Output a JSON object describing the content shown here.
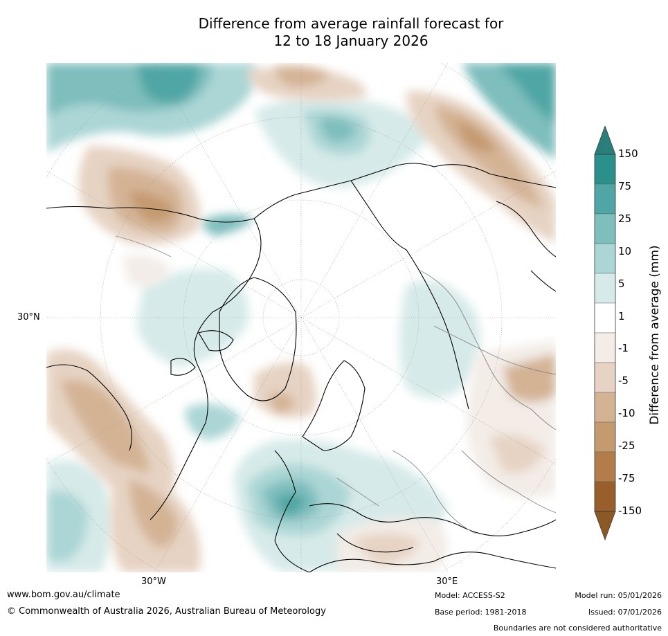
{
  "title_line1": "Difference from average rainfall forecast for",
  "title_line2": "12 to 18 January 2026",
  "map": {
    "projection": "north-polar-stereographic",
    "lat_label": "30°N",
    "lon_labels": [
      "30°W",
      "30°E"
    ],
    "land_color": "#ffffff",
    "coast_color": "#000000",
    "border_color": "#888888"
  },
  "colorbar": {
    "title": "Difference from average (mm)",
    "ticks": [
      "150",
      "75",
      "25",
      "10",
      "5",
      "1",
      "-1",
      "-5",
      "-10",
      "-25",
      "-75",
      "-150"
    ],
    "colors": [
      "#2b8f8a",
      "#4fa6a4",
      "#7ebebd",
      "#abd6d5",
      "#d6eae9",
      "#ffffff",
      "#f3ece7",
      "#e6d3c3",
      "#d4b395",
      "#c49a6f",
      "#b27d4a",
      "#985f2c"
    ],
    "top_arrow_color": "#2b7f7b",
    "bottom_arrow_color": "#8b5a24"
  },
  "footer": {
    "website": "www.bom.gov.au/climate",
    "copyright": "© Commonwealth of Australia 2026, Australian Bureau of Meteorology",
    "model": "Model: ACCESS-S2",
    "base_period": "Base period: 1981-2018",
    "model_run": "Model run: 05/01/2026",
    "issued": "Issued: 07/01/2026",
    "boundaries_note": "Boundaries are not considered authoritative"
  }
}
